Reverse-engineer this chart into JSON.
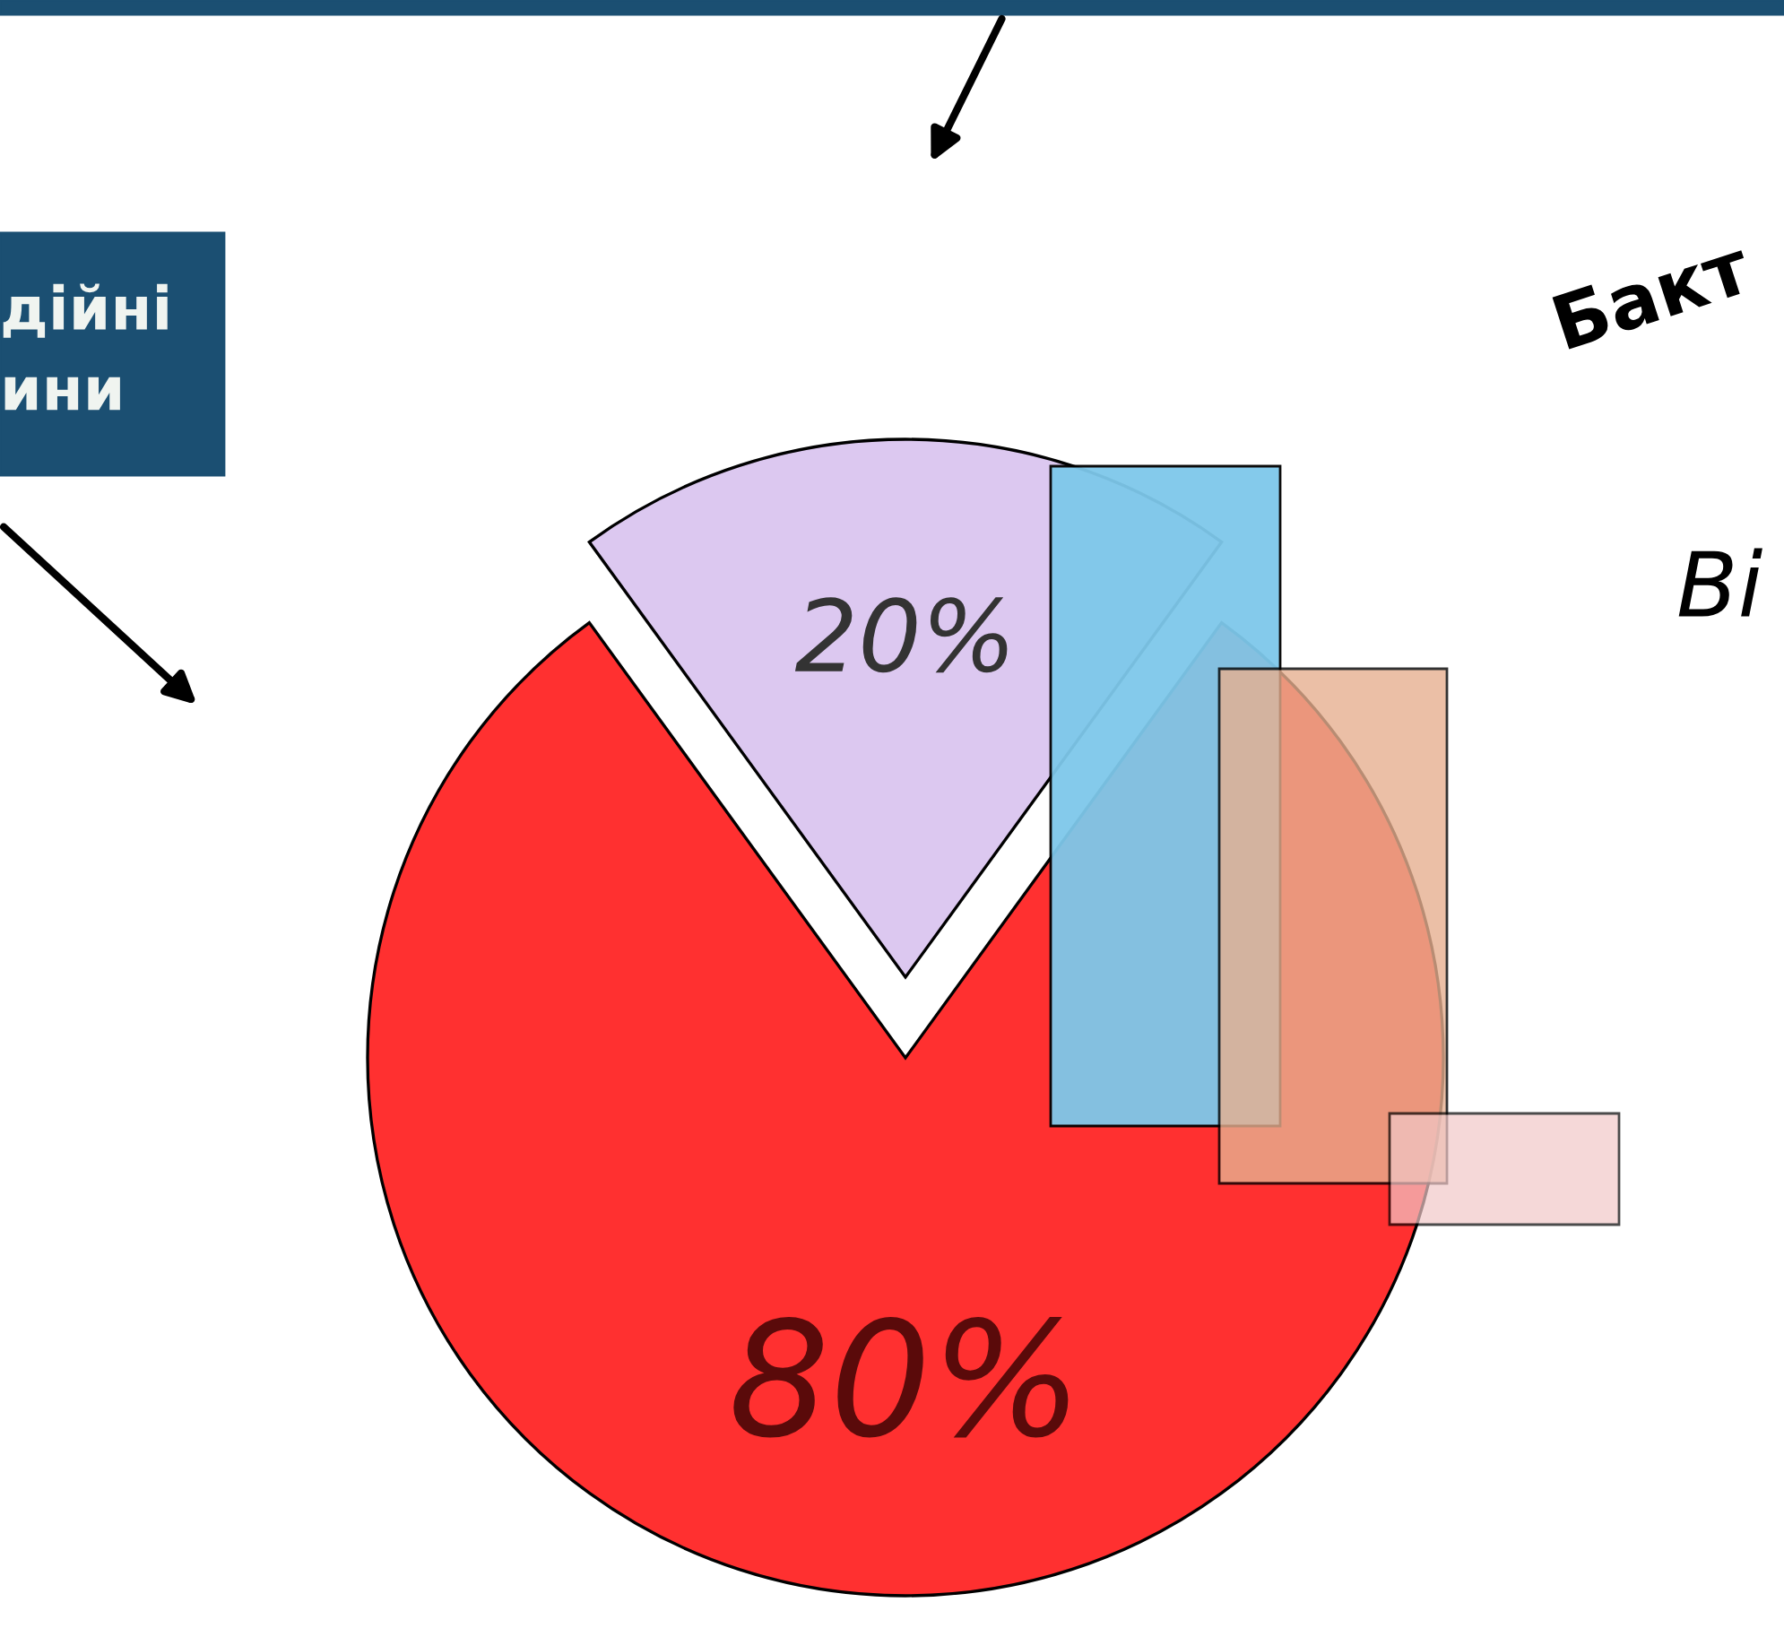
{
  "chart_data": {
    "type": "pie",
    "categories": [
      null,
      null
    ],
    "values": [
      80,
      20
    ],
    "colors": [
      "#ff3030",
      "#dcc8f0"
    ],
    "value_labels": [
      "80%",
      "20%"
    ],
    "annotations": [
      "дійні\nини",
      "Бакт",
      "Ві"
    ]
  }
}
